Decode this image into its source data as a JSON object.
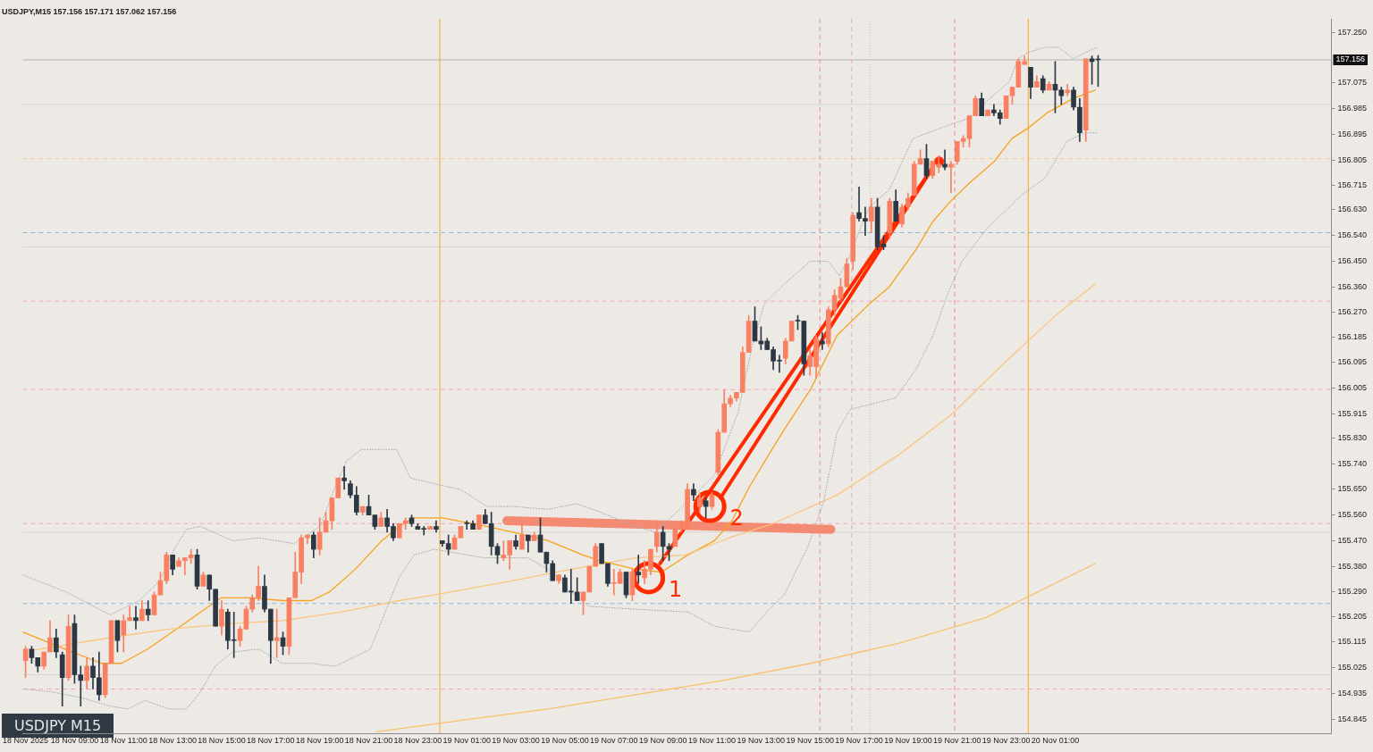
{
  "chart_data": {
    "type": "candlestick",
    "title": "USDJPY,M15 157.156 157.171 157.062 157.156",
    "xlim": [
      "2025-11-18T06:53",
      "2025-11-20T12:16"
    ],
    "ylim": [
      154.795,
      157.3
    ],
    "xticks": [
      {
        "value": "2025-11-18T07:00",
        "label": "18 Nov 2025"
      },
      {
        "value": "2025-11-18T09:00",
        "label": "18 Nov 09:00"
      },
      {
        "value": "2025-11-18T11:00",
        "label": "18 Nov 11:00"
      },
      {
        "value": "2025-11-18T13:00",
        "label": "18 Nov 13:00"
      },
      {
        "value": "2025-11-18T15:00",
        "label": "18 Nov 15:00"
      },
      {
        "value": "2025-11-18T17:00",
        "label": "18 Nov 17:00"
      },
      {
        "value": "2025-11-18T19:00",
        "label": "18 Nov 19:00"
      },
      {
        "value": "2025-11-18T21:00",
        "label": "18 Nov 21:00"
      },
      {
        "value": "2025-11-18T23:00",
        "label": "18 Nov 23:00"
      },
      {
        "value": "2025-11-19T01:00",
        "label": "19 Nov 01:00"
      },
      {
        "value": "2025-11-19T03:00",
        "label": "19 Nov 03:00"
      },
      {
        "value": "2025-11-19T05:00",
        "label": "19 Nov 05:00"
      },
      {
        "value": "2025-11-19T07:00",
        "label": "19 Nov 07:00"
      },
      {
        "value": "2025-11-19T09:00",
        "label": "19 Nov 09:00"
      },
      {
        "value": "2025-11-19T11:00",
        "label": "19 Nov 11:00"
      },
      {
        "value": "2025-11-19T13:00",
        "label": "19 Nov 13:00"
      },
      {
        "value": "2025-11-19T15:00",
        "label": "19 Nov 15:00"
      },
      {
        "value": "2025-11-19T17:00",
        "label": "19 Nov 17:00"
      },
      {
        "value": "2025-11-19T19:00",
        "label": "19 Nov 19:00"
      },
      {
        "value": "2025-11-19T21:00",
        "label": "19 Nov 21:00"
      },
      {
        "value": "2025-11-19T23:00",
        "label": "19 Nov 23:00"
      },
      {
        "value": "2025-11-20T01:00",
        "label": "20 Nov 01:00"
      }
    ],
    "yticks": [
      {
        "value": 157.25,
        "label": "157.250"
      },
      {
        "value": 157.075,
        "label": "157.075"
      },
      {
        "value": 156.985,
        "label": "156.985"
      },
      {
        "value": 156.895,
        "label": "156.895"
      },
      {
        "value": 156.805,
        "label": "156.805"
      },
      {
        "value": 156.715,
        "label": "156.715"
      },
      {
        "value": 156.63,
        "label": "156.630"
      },
      {
        "value": 156.54,
        "label": "156.540"
      },
      {
        "value": 156.45,
        "label": "156.450"
      },
      {
        "value": 156.36,
        "label": "156.360"
      },
      {
        "value": 156.27,
        "label": "156.270"
      },
      {
        "value": 156.185,
        "label": "156.185"
      },
      {
        "value": 156.095,
        "label": "156.095"
      },
      {
        "value": 156.005,
        "label": "156.005"
      },
      {
        "value": 155.915,
        "label": "155.915"
      },
      {
        "value": 155.83,
        "label": "155.830"
      },
      {
        "value": 155.74,
        "label": "155.740"
      },
      {
        "value": 155.65,
        "label": "155.650"
      },
      {
        "value": 155.56,
        "label": "155.560"
      },
      {
        "value": 155.47,
        "label": "155.470"
      },
      {
        "value": 155.38,
        "label": "155.380"
      },
      {
        "value": 155.29,
        "label": "155.290"
      },
      {
        "value": 155.205,
        "label": "155.205"
      },
      {
        "value": 155.115,
        "label": "155.115"
      },
      {
        "value": 155.025,
        "label": "155.025"
      },
      {
        "value": 154.935,
        "label": "154.935"
      },
      {
        "value": 154.845,
        "label": "154.845"
      }
    ],
    "x": [
      "2025-11-18T07:00",
      "2025-11-18T07:15",
      "2025-11-18T07:30",
      "2025-11-18T07:45",
      "2025-11-18T08:00",
      "2025-11-18T08:15",
      "2025-11-18T08:30",
      "2025-11-18T08:45",
      "2025-11-18T09:00",
      "2025-11-18T09:15",
      "2025-11-18T09:30",
      "2025-11-18T09:45",
      "2025-11-18T10:00",
      "2025-11-18T10:15",
      "2025-11-18T10:30",
      "2025-11-18T10:45",
      "2025-11-18T11:00",
      "2025-11-18T11:15",
      "2025-11-18T11:30",
      "2025-11-18T11:45",
      "2025-11-18T12:00",
      "2025-11-18T12:15",
      "2025-11-18T12:30",
      "2025-11-18T12:45",
      "2025-11-18T13:00",
      "2025-11-18T13:15",
      "2025-11-18T13:30",
      "2025-11-18T13:45",
      "2025-11-18T14:00",
      "2025-11-18T14:15",
      "2025-11-18T14:30",
      "2025-11-18T14:45",
      "2025-11-18T15:00",
      "2025-11-18T15:15",
      "2025-11-18T15:30",
      "2025-11-18T15:45",
      "2025-11-18T16:00",
      "2025-11-18T16:15",
      "2025-11-18T16:30",
      "2025-11-18T16:45",
      "2025-11-18T17:00",
      "2025-11-18T17:15",
      "2025-11-18T17:30",
      "2025-11-18T17:45",
      "2025-11-18T18:00",
      "2025-11-18T18:15",
      "2025-11-18T18:30",
      "2025-11-18T18:45",
      "2025-11-18T19:00",
      "2025-11-18T19:15",
      "2025-11-18T19:30",
      "2025-11-18T19:45",
      "2025-11-18T20:00",
      "2025-11-18T20:15",
      "2025-11-18T20:30",
      "2025-11-18T20:45",
      "2025-11-18T21:00",
      "2025-11-18T21:15",
      "2025-11-18T21:30",
      "2025-11-18T21:45",
      "2025-11-18T22:00",
      "2025-11-18T22:15",
      "2025-11-18T22:30",
      "2025-11-18T22:45",
      "2025-11-18T23:00",
      "2025-11-18T23:15",
      "2025-11-18T23:30",
      "2025-11-18T23:45",
      "2025-11-19T00:00",
      "2025-11-19T00:15",
      "2025-11-19T00:30",
      "2025-11-19T00:45",
      "2025-11-19T01:00",
      "2025-11-19T01:15",
      "2025-11-19T01:30",
      "2025-11-19T01:45",
      "2025-11-19T02:00",
      "2025-11-19T02:15",
      "2025-11-19T02:30",
      "2025-11-19T02:45",
      "2025-11-19T03:00",
      "2025-11-19T03:15",
      "2025-11-19T03:30",
      "2025-11-19T03:45",
      "2025-11-19T04:00",
      "2025-11-19T04:15",
      "2025-11-19T04:30",
      "2025-11-19T04:45",
      "2025-11-19T05:00",
      "2025-11-19T05:15",
      "2025-11-19T05:30",
      "2025-11-19T05:45",
      "2025-11-19T06:00",
      "2025-11-19T06:15",
      "2025-11-19T06:30",
      "2025-11-19T06:45",
      "2025-11-19T07:00",
      "2025-11-19T07:15",
      "2025-11-19T07:30",
      "2025-11-19T07:45",
      "2025-11-19T08:00",
      "2025-11-19T08:15",
      "2025-11-19T08:30",
      "2025-11-19T08:45",
      "2025-11-19T09:00",
      "2025-11-19T09:15",
      "2025-11-19T09:30",
      "2025-11-19T09:45",
      "2025-11-19T10:00",
      "2025-11-19T10:15",
      "2025-11-19T10:30",
      "2025-11-19T10:45",
      "2025-11-19T11:00",
      "2025-11-19T11:15",
      "2025-11-19T11:30",
      "2025-11-19T11:45",
      "2025-11-19T12:00",
      "2025-11-19T12:15",
      "2025-11-19T12:30",
      "2025-11-19T12:45",
      "2025-11-19T13:00",
      "2025-11-19T13:15",
      "2025-11-19T13:30",
      "2025-11-19T13:45",
      "2025-11-19T14:00",
      "2025-11-19T14:15",
      "2025-11-19T14:30",
      "2025-11-19T14:45",
      "2025-11-19T15:00",
      "2025-11-19T15:15",
      "2025-11-19T15:30",
      "2025-11-19T15:45",
      "2025-11-19T16:00",
      "2025-11-19T16:15",
      "2025-11-19T16:30",
      "2025-11-19T16:45",
      "2025-11-19T17:00",
      "2025-11-19T17:15",
      "2025-11-19T17:30",
      "2025-11-19T17:45",
      "2025-11-19T18:00",
      "2025-11-19T18:15",
      "2025-11-19T18:30",
      "2025-11-19T18:45",
      "2025-11-19T19:00",
      "2025-11-19T19:15",
      "2025-11-19T19:30",
      "2025-11-19T19:45",
      "2025-11-19T20:00",
      "2025-11-19T20:15",
      "2025-11-19T20:30",
      "2025-11-19T20:45",
      "2025-11-19T21:00",
      "2025-11-19T21:15",
      "2025-11-19T21:30",
      "2025-11-19T21:45",
      "2025-11-19T22:00",
      "2025-11-19T22:15",
      "2025-11-19T22:30",
      "2025-11-19T22:45",
      "2025-11-19T23:00",
      "2025-11-19T23:15",
      "2025-11-19T23:30",
      "2025-11-19T23:45",
      "2025-11-20T00:00",
      "2025-11-20T00:15",
      "2025-11-20T00:30",
      "2025-11-20T00:45",
      "2025-11-20T01:00",
      "2025-11-20T01:15",
      "2025-11-20T01:30",
      "2025-11-20T01:45",
      "2025-11-20T02:00",
      "2025-11-20T02:15",
      "2025-11-20T02:30",
      "2025-11-20T02:45"
    ],
    "ohlc": [
      [
        155.05,
        155.1,
        154.99,
        155.09
      ],
      [
        155.09,
        155.1,
        155.04,
        155.06
      ],
      [
        155.06,
        155.06,
        155.01,
        155.03
      ],
      [
        155.03,
        155.08,
        155.02,
        155.08
      ],
      [
        155.08,
        155.19,
        155.08,
        155.13
      ],
      [
        155.13,
        155.16,
        155.06,
        155.08
      ],
      [
        155.07,
        155.08,
        154.89,
        154.99
      ],
      [
        154.99,
        155.21,
        154.98,
        155.17
      ],
      [
        155.18,
        155.21,
        154.97,
        155.0
      ],
      [
        155.0,
        155.03,
        154.89,
        154.98
      ],
      [
        154.98,
        155.06,
        154.95,
        155.03
      ],
      [
        155.03,
        155.06,
        154.95,
        154.99
      ],
      [
        154.99,
        155.08,
        154.91,
        154.93
      ],
      [
        154.93,
        155.04,
        154.92,
        155.04
      ],
      [
        155.04,
        155.19,
        155.04,
        155.19
      ],
      [
        155.19,
        155.19,
        155.08,
        155.12
      ],
      [
        155.14,
        155.21,
        155.08,
        155.19
      ],
      [
        155.19,
        155.24,
        155.19,
        155.2
      ],
      [
        155.2,
        155.24,
        155.16,
        155.19
      ],
      [
        155.19,
        155.26,
        155.19,
        155.23
      ],
      [
        155.23,
        155.26,
        155.19,
        155.21
      ],
      [
        155.21,
        155.29,
        155.21,
        155.28
      ],
      [
        155.28,
        155.36,
        155.28,
        155.33
      ],
      [
        155.33,
        155.43,
        155.32,
        155.42
      ],
      [
        155.42,
        155.42,
        155.35,
        155.37
      ],
      [
        155.38,
        155.41,
        155.38,
        155.4
      ],
      [
        155.4,
        155.41,
        155.35,
        155.41
      ],
      [
        155.41,
        155.44,
        155.39,
        155.42
      ],
      [
        155.42,
        155.44,
        155.3,
        155.31
      ],
      [
        155.31,
        155.36,
        155.31,
        155.35
      ],
      [
        155.35,
        155.35,
        155.26,
        155.3
      ],
      [
        155.3,
        155.3,
        155.17,
        155.17
      ],
      [
        155.17,
        155.26,
        155.14,
        155.23
      ],
      [
        155.22,
        155.23,
        155.09,
        155.12
      ],
      [
        155.12,
        155.22,
        155.06,
        155.12
      ],
      [
        155.12,
        155.17,
        155.1,
        155.16
      ],
      [
        155.16,
        155.24,
        155.16,
        155.23
      ],
      [
        155.23,
        155.28,
        155.22,
        155.27
      ],
      [
        155.27,
        155.38,
        155.26,
        155.31
      ],
      [
        155.31,
        155.35,
        155.22,
        155.23
      ],
      [
        155.23,
        155.23,
        155.04,
        155.12
      ],
      [
        155.12,
        155.23,
        155.06,
        155.13
      ],
      [
        155.13,
        155.15,
        155.07,
        155.1
      ],
      [
        155.1,
        155.27,
        155.07,
        155.27
      ],
      [
        155.27,
        155.43,
        155.27,
        155.36
      ],
      [
        155.36,
        155.49,
        155.32,
        155.48
      ],
      [
        155.48,
        155.49,
        155.46,
        155.49
      ],
      [
        155.49,
        155.5,
        155.41,
        155.44
      ],
      [
        155.44,
        155.55,
        155.42,
        155.5
      ],
      [
        155.5,
        155.57,
        155.5,
        155.54
      ],
      [
        155.54,
        155.62,
        155.51,
        155.62
      ],
      [
        155.62,
        155.69,
        155.62,
        155.69
      ],
      [
        155.69,
        155.73,
        155.65,
        155.68
      ],
      [
        155.67,
        155.68,
        155.62,
        155.63
      ],
      [
        155.63,
        155.66,
        155.56,
        155.57
      ],
      [
        155.57,
        155.59,
        155.56,
        155.59
      ],
      [
        155.59,
        155.63,
        155.56,
        155.56
      ],
      [
        155.56,
        155.56,
        155.51,
        155.52
      ],
      [
        155.52,
        155.57,
        155.52,
        155.55
      ],
      [
        155.55,
        155.58,
        155.5,
        155.52
      ],
      [
        155.52,
        155.53,
        155.47,
        155.48
      ],
      [
        155.48,
        155.53,
        155.48,
        155.53
      ],
      [
        155.53,
        155.55,
        155.51,
        155.54
      ],
      [
        155.55,
        155.56,
        155.52,
        155.53
      ],
      [
        155.52,
        155.53,
        155.51,
        155.51
      ],
      [
        155.51,
        155.52,
        155.49,
        155.51
      ],
      [
        155.51,
        155.52,
        155.51,
        155.52
      ],
      [
        155.52,
        155.54,
        155.5,
        155.51
      ],
      [
        155.47,
        155.47,
        155.45,
        155.46
      ],
      [
        155.46,
        155.49,
        155.42,
        155.44
      ],
      [
        155.44,
        155.49,
        155.44,
        155.48
      ],
      [
        155.48,
        155.52,
        155.48,
        155.52
      ],
      [
        155.53,
        155.54,
        155.51,
        155.53
      ],
      [
        155.53,
        155.54,
        155.51,
        155.51
      ],
      [
        155.51,
        155.56,
        155.51,
        155.56
      ],
      [
        155.56,
        155.58,
        155.53,
        155.53
      ],
      [
        155.53,
        155.57,
        155.42,
        155.45
      ],
      [
        155.45,
        155.46,
        155.39,
        155.42
      ],
      [
        155.41,
        155.47,
        155.4,
        155.42
      ],
      [
        155.42,
        155.47,
        155.37,
        155.47
      ],
      [
        155.47,
        155.49,
        155.44,
        155.45
      ],
      [
        155.44,
        155.53,
        155.44,
        155.49
      ],
      [
        155.49,
        155.49,
        155.43,
        155.47
      ],
      [
        155.47,
        155.5,
        155.47,
        155.49
      ],
      [
        155.49,
        155.55,
        155.43,
        155.43
      ],
      [
        155.43,
        155.43,
        155.36,
        155.39
      ],
      [
        155.39,
        155.4,
        155.33,
        155.33
      ],
      [
        155.33,
        155.35,
        155.32,
        155.35
      ],
      [
        155.34,
        155.35,
        155.29,
        155.29
      ],
      [
        155.29,
        155.37,
        155.25,
        155.29
      ],
      [
        155.29,
        155.34,
        155.26,
        155.26
      ],
      [
        155.26,
        155.29,
        155.21,
        155.29
      ],
      [
        155.29,
        155.38,
        155.29,
        155.38
      ],
      [
        155.38,
        155.46,
        155.38,
        155.45
      ],
      [
        155.46,
        155.46,
        155.39,
        155.39
      ],
      [
        155.39,
        155.39,
        155.31,
        155.32
      ],
      [
        155.32,
        155.37,
        155.28,
        155.32
      ],
      [
        155.32,
        155.37,
        155.32,
        155.36
      ],
      [
        155.36,
        155.36,
        155.27,
        155.28
      ],
      [
        155.28,
        155.37,
        155.26,
        155.36
      ],
      [
        155.36,
        155.42,
        155.32,
        155.35
      ],
      [
        155.34,
        155.4,
        155.32,
        155.37
      ],
      [
        155.37,
        155.44,
        155.35,
        155.44
      ],
      [
        155.45,
        155.53,
        155.43,
        155.5
      ],
      [
        155.5,
        155.52,
        155.4,
        155.45
      ],
      [
        155.45,
        155.46,
        155.4,
        155.44
      ],
      [
        155.45,
        155.52,
        155.45,
        155.51
      ],
      [
        155.51,
        155.54,
        155.5,
        155.53
      ],
      [
        155.51,
        155.67,
        155.51,
        155.65
      ],
      [
        155.65,
        155.67,
        155.61,
        155.63
      ],
      [
        155.59,
        155.64,
        155.57,
        155.62
      ],
      [
        155.61,
        155.62,
        155.55,
        155.59
      ],
      [
        155.59,
        155.64,
        155.58,
        155.63
      ],
      [
        155.71,
        155.86,
        155.7,
        155.85
      ],
      [
        155.85,
        156.0,
        155.85,
        155.95
      ],
      [
        155.95,
        155.98,
        155.94,
        155.97
      ],
      [
        155.97,
        155.99,
        155.96,
        155.99
      ],
      [
        155.99,
        156.15,
        155.99,
        156.13
      ],
      [
        156.13,
        156.26,
        156.13,
        156.24
      ],
      [
        156.24,
        156.29,
        156.17,
        156.17
      ],
      [
        156.17,
        156.22,
        156.14,
        156.16
      ],
      [
        156.17,
        156.18,
        156.14,
        156.14
      ],
      [
        156.14,
        156.15,
        156.07,
        156.1
      ],
      [
        156.1,
        156.12,
        156.06,
        156.1
      ],
      [
        156.11,
        156.18,
        156.09,
        156.17
      ],
      [
        156.17,
        156.24,
        156.17,
        156.24
      ],
      [
        156.24,
        156.26,
        156.21,
        156.24
      ],
      [
        156.24,
        156.24,
        156.05,
        156.09
      ],
      [
        156.08,
        156.14,
        156.05,
        156.12
      ],
      [
        156.08,
        156.19,
        156.04,
        156.18
      ],
      [
        156.17,
        156.2,
        156.14,
        156.16
      ],
      [
        156.16,
        156.29,
        156.15,
        156.28
      ],
      [
        156.28,
        156.35,
        156.26,
        156.33
      ],
      [
        156.32,
        156.39,
        156.31,
        156.36
      ],
      [
        156.36,
        156.46,
        156.36,
        156.44
      ],
      [
        156.45,
        156.62,
        156.42,
        156.61
      ],
      [
        156.62,
        156.71,
        156.59,
        156.6
      ],
      [
        156.6,
        156.64,
        156.54,
        156.59
      ],
      [
        156.59,
        156.67,
        156.55,
        156.64
      ],
      [
        156.64,
        156.67,
        156.49,
        156.5
      ],
      [
        156.51,
        156.54,
        156.49,
        156.5
      ],
      [
        156.55,
        156.67,
        156.53,
        156.66
      ],
      [
        156.66,
        156.7,
        156.59,
        156.59
      ],
      [
        156.58,
        156.65,
        156.57,
        156.64
      ],
      [
        156.64,
        156.69,
        156.63,
        156.67
      ],
      [
        156.68,
        156.8,
        156.68,
        156.79
      ],
      [
        156.79,
        156.84,
        156.79,
        156.81
      ],
      [
        156.81,
        156.86,
        156.74,
        156.75
      ],
      [
        156.75,
        156.8,
        156.74,
        156.8
      ],
      [
        156.78,
        156.82,
        156.76,
        156.79
      ],
      [
        156.79,
        156.84,
        156.77,
        156.78
      ],
      [
        156.78,
        156.8,
        156.69,
        156.79
      ],
      [
        156.8,
        156.87,
        156.79,
        156.87
      ],
      [
        156.87,
        156.89,
        156.85,
        156.88
      ],
      [
        156.88,
        156.96,
        156.85,
        156.96
      ],
      [
        156.96,
        157.03,
        156.96,
        157.02
      ],
      [
        157.02,
        157.04,
        156.96,
        156.96
      ],
      [
        156.96,
        156.98,
        156.96,
        156.98
      ],
      [
        156.98,
        157.0,
        156.96,
        156.97
      ],
      [
        156.97,
        156.98,
        156.93,
        156.95
      ],
      [
        156.95,
        157.03,
        156.95,
        157.03
      ],
      [
        157.03,
        157.06,
        157.0,
        157.06
      ],
      [
        157.06,
        157.16,
        157.06,
        157.15
      ],
      [
        157.14,
        157.17,
        157.14,
        157.15
      ],
      [
        157.13,
        157.13,
        157.02,
        157.06
      ],
      [
        157.06,
        157.1,
        157.06,
        157.08
      ],
      [
        157.09,
        157.1,
        157.04,
        157.05
      ],
      [
        157.05,
        157.08,
        157.05,
        157.07
      ],
      [
        157.07,
        157.15,
        156.97,
        157.05
      ],
      [
        157.05,
        157.06,
        157.0,
        157.03
      ],
      [
        157.04,
        157.07,
        157.03,
        157.05
      ],
      [
        157.05,
        157.06,
        156.98,
        156.99
      ],
      [
        156.99,
        157.02,
        156.87,
        156.9
      ],
      [
        156.91,
        157.16,
        156.87,
        157.16
      ],
      [
        157.16,
        157.17,
        157.07,
        157.15
      ],
      [
        157.156,
        157.171,
        157.062,
        157.156
      ]
    ],
    "colors": [
      "#f98060",
      "#2c3844",
      "#2c3844",
      "#f98060",
      "#f98060",
      "#2c3844",
      "#2c3844",
      "#f98060",
      "#2c3844",
      "#2c3844",
      "#f98060",
      "#2c3844",
      "#2c3844",
      "#f98060",
      "#f98060",
      "#2c3844",
      "#f98060",
      "#f98060",
      "#2c3844",
      "#f98060",
      "#2c3844",
      "#f98060",
      "#f98060",
      "#f98060",
      "#2c3844",
      "#f98060",
      "#f98060",
      "#f98060",
      "#2c3844",
      "#f98060",
      "#2c3844",
      "#2c3844",
      "#f98060",
      "#2c3844",
      "#2c3844",
      "#f98060",
      "#f98060",
      "#f98060",
      "#f98060",
      "#2c3844",
      "#2c3844",
      "#f98060",
      "#2c3844",
      "#f98060",
      "#f98060",
      "#f98060",
      "#f98060",
      "#2c3844",
      "#f98060",
      "#f98060",
      "#f98060",
      "#f98060",
      "#2c3844",
      "#2c3844",
      "#2c3844",
      "#f98060",
      "#2c3844",
      "#2c3844",
      "#f98060",
      "#2c3844",
      "#2c3844",
      "#f98060",
      "#f98060",
      "#2c3844",
      "#2c3844",
      "#2c3844",
      "#f98060",
      "#2c3844",
      "#2c3844",
      "#2c3844",
      "#f98060",
      "#f98060",
      "#2c3844",
      "#2c3844",
      "#f98060",
      "#2c3844",
      "#2c3844",
      "#2c3844",
      "#f98060",
      "#f98060",
      "#2c3844",
      "#f98060",
      "#2c3844",
      "#f98060",
      "#2c3844",
      "#2c3844",
      "#2c3844",
      "#f98060",
      "#2c3844",
      "#2c3844",
      "#2c3844",
      "#f98060",
      "#f98060",
      "#f98060",
      "#2c3844",
      "#2c3844",
      "#f98060",
      "#f98060",
      "#2c3844",
      "#f98060",
      "#2c3844",
      "#f98060",
      "#f98060",
      "#f98060",
      "#2c3844",
      "#2c3844",
      "#f98060",
      "#f98060",
      "#f98060",
      "#2c3844",
      "#f98060",
      "#2c3844",
      "#f98060",
      "#f98060",
      "#f98060",
      "#f98060",
      "#f98060",
      "#f98060",
      "#f98060",
      "#2c3844",
      "#2c3844",
      "#2c3844",
      "#2c3844",
      "#2c3844",
      "#f98060",
      "#f98060",
      "#2c3844",
      "#2c3844",
      "#f98060",
      "#f98060",
      "#2c3844",
      "#f98060",
      "#f98060",
      "#f98060",
      "#f98060",
      "#f98060",
      "#2c3844",
      "#2c3844",
      "#f98060",
      "#2c3844",
      "#2c3844",
      "#f98060",
      "#2c3844",
      "#f98060",
      "#f98060",
      "#f98060",
      "#f98060",
      "#2c3844",
      "#f98060",
      "#f98060",
      "#2c3844",
      "#f98060",
      "#f98060",
      "#f98060",
      "#f98060",
      "#f98060",
      "#2c3844",
      "#f98060",
      "#2c3844",
      "#2c3844",
      "#f98060",
      "#f98060",
      "#f98060",
      "#f98060",
      "#2c3844",
      "#f98060",
      "#2c3844",
      "#f98060",
      "#2c3844",
      "#2c3844",
      "#f98060",
      "#2c3844",
      "#2c3844",
      "#f98060",
      "#2c3844",
      "#2c3844"
    ],
    "series": [
      {
        "type": "line",
        "color": "#a9a8b2",
        "line_style": "dotted",
        "x": [
          "2025-11-18T06:53",
          "2025-11-18T08:40",
          "2025-11-18T10:27",
          "2025-11-18T11:38",
          "2025-11-18T12:29",
          "2025-11-18T13:04",
          "2025-11-18T13:34",
          "2025-11-18T14:08",
          "2025-11-18T15:27",
          "2025-11-18T16:31",
          "2025-11-18T17:57",
          "2025-11-18T19:01",
          "2025-11-18T19:38",
          "2025-11-18T20:06",
          "2025-11-18T20:42",
          "2025-11-18T22:08",
          "2025-11-18T22:42",
          "2025-11-18T23:40",
          "2025-11-19T00:44",
          "2025-11-19T01:49",
          "2025-11-19T02:53",
          "2025-11-19T04:19",
          "2025-11-19T05:29",
          "2025-11-19T06:27",
          "2025-11-19T07:53",
          "2025-11-19T08:42",
          "2025-11-19T09:55",
          "2025-11-19T11:06",
          "2025-11-19T12:04",
          "2025-11-19T12:38",
          "2025-11-19T13:08",
          "2025-11-19T13:57",
          "2025-11-19T15:01",
          "2025-11-19T15:44",
          "2025-11-19T16:12",
          "2025-11-19T16:34",
          "2025-11-19T17:25",
          "2025-11-19T18:14",
          "2025-11-19T19:12",
          "2025-11-19T20:44",
          "2025-11-19T21:27",
          "2025-11-19T22:04",
          "2025-11-19T23:08",
          "2025-11-19T23:29",
          "2025-11-19T23:51",
          "2025-11-20T00:34",
          "2025-11-20T01:08",
          "2025-11-20T01:44",
          "2025-11-20T02:12",
          "2025-11-20T02:42"
        ],
        "values": [
          155.35,
          155.29,
          155.21,
          155.26,
          155.33,
          155.44,
          155.51,
          155.52,
          155.47,
          155.48,
          155.46,
          155.52,
          155.66,
          155.75,
          155.79,
          155.79,
          155.69,
          155.67,
          155.65,
          155.59,
          155.59,
          155.58,
          155.6,
          155.57,
          155.52,
          155.5,
          155.6,
          155.7,
          155.92,
          156.15,
          156.3,
          156.37,
          156.45,
          156.45,
          156.4,
          156.46,
          156.64,
          156.7,
          156.88,
          156.93,
          156.95,
          157.0,
          157.08,
          157.16,
          157.18,
          157.2,
          157.2,
          157.16,
          157.18,
          157.2
        ]
      },
      {
        "type": "line",
        "color": "#a9a8b2",
        "line_style": "dotted",
        "x": [
          "2025-11-18T06:53",
          "2025-11-18T08:04",
          "2025-11-18T09:16",
          "2025-11-18T10:27",
          "2025-11-18T11:10",
          "2025-11-18T11:53",
          "2025-11-18T12:51",
          "2025-11-18T13:34",
          "2025-11-18T14:08",
          "2025-11-18T14:44",
          "2025-11-18T15:27",
          "2025-11-18T16:31",
          "2025-11-18T17:29",
          "2025-11-18T18:40",
          "2025-11-18T19:38",
          "2025-11-18T21:04",
          "2025-11-18T22:14",
          "2025-11-18T22:51",
          "2025-11-18T23:40",
          "2025-11-19T01:42",
          "2025-11-19T03:29",
          "2025-11-19T04:19",
          "2025-11-19T05:16",
          "2025-11-19T05:59",
          "2025-11-19T07:53",
          "2025-11-19T10:01",
          "2025-11-19T11:06",
          "2025-11-19T12:32",
          "2025-11-19T13:14",
          "2025-11-19T13:57",
          "2025-11-19T14:55",
          "2025-11-19T15:34",
          "2025-11-19T16:06",
          "2025-11-19T16:38",
          "2025-11-19T17:32",
          "2025-11-19T18:29",
          "2025-11-19T19:19",
          "2025-11-19T20:01",
          "2025-11-19T20:38",
          "2025-11-19T21:12",
          "2025-11-19T22:10",
          "2025-11-19T23:36",
          "2025-11-20T00:34",
          "2025-11-20T01:29",
          "2025-11-20T02:12",
          "2025-11-20T02:42"
        ],
        "values": [
          154.95,
          154.94,
          154.92,
          154.89,
          154.88,
          154.91,
          154.88,
          154.88,
          154.94,
          155.03,
          155.08,
          155.09,
          155.04,
          155.04,
          155.03,
          155.09,
          155.34,
          155.42,
          155.44,
          155.41,
          155.41,
          155.37,
          155.29,
          155.24,
          155.23,
          155.22,
          155.17,
          155.15,
          155.22,
          155.28,
          155.45,
          155.61,
          155.85,
          155.93,
          155.95,
          155.97,
          156.07,
          156.19,
          156.34,
          156.45,
          156.56,
          156.68,
          156.74,
          156.87,
          156.9,
          156.9
        ]
      },
      {
        "type": "line",
        "color": "#f9c67e",
        "line_style": "solid",
        "x": [
          "2025-11-18T06:53",
          "2025-11-18T10:27",
          "2025-11-18T12:51",
          "2025-11-18T15:27",
          "2025-11-18T17:29",
          "2025-11-18T19:51",
          "2025-11-18T22:14",
          "2025-11-18T23:40",
          "2025-11-19T02:53",
          "2025-11-19T05:16",
          "2025-11-19T07:53",
          "2025-11-19T09:55",
          "2025-11-19T11:42",
          "2025-11-19T13:29",
          "2025-11-19T16:06",
          "2025-11-19T18:36",
          "2025-11-19T20:44",
          "2025-11-19T22:53",
          "2025-11-20T01:01",
          "2025-11-20T02:38"
        ],
        "values": [
          155.08,
          155.13,
          155.16,
          155.18,
          155.19,
          155.22,
          155.26,
          155.28,
          155.33,
          155.37,
          155.41,
          155.42,
          155.48,
          155.53,
          155.63,
          155.77,
          155.91,
          156.09,
          156.26,
          156.37
        ]
      },
      {
        "type": "line",
        "color": "#f9c06a",
        "line_style": "solid",
        "x": [
          "2025-11-18T21:19",
          "2025-11-19T00:44",
          "2025-11-19T04:19",
          "2025-11-19T07:53",
          "2025-11-19T11:27",
          "2025-11-19T15:01",
          "2025-11-19T18:36",
          "2025-11-19T22:10",
          "2025-11-20T02:38"
        ],
        "values": [
          154.8,
          154.84,
          154.88,
          154.93,
          154.98,
          155.04,
          155.11,
          155.2,
          155.39
        ]
      },
      {
        "type": "line",
        "color": "#f7a21b",
        "line_style": "solid",
        "x": [
          "2025-11-18T06:53",
          "2025-11-18T08:19",
          "2025-11-18T10:06",
          "2025-11-18T10:55",
          "2025-11-18T11:59",
          "2025-11-18T13:19",
          "2025-11-18T14:59",
          "2025-11-18T16:10",
          "2025-11-18T17:29",
          "2025-11-18T18:40",
          "2025-11-18T19:23",
          "2025-11-18T20:27",
          "2025-11-18T21:32",
          "2025-11-18T22:14",
          "2025-11-18T22:51",
          "2025-11-18T23:40",
          "2025-11-19T00:01",
          "2025-11-19T01:49",
          "2025-11-19T02:53",
          "2025-11-19T04:19",
          "2025-11-19T05:44",
          "2025-11-19T06:27",
          "2025-11-19T07:53",
          "2025-11-19T08:57",
          "2025-11-19T10:01",
          "2025-11-19T11:06",
          "2025-11-19T11:49",
          "2025-11-19T12:32",
          "2025-11-19T13:14",
          "2025-11-19T13:57",
          "2025-11-19T15:01",
          "2025-11-19T16:06",
          "2025-11-19T17:25",
          "2025-11-19T18:14",
          "2025-11-19T19:19",
          "2025-11-19T20:01",
          "2025-11-19T20:44",
          "2025-11-19T21:27",
          "2025-11-19T22:31",
          "2025-11-19T23:14",
          "2025-11-19T23:57",
          "2025-11-20T00:40",
          "2025-11-20T01:44",
          "2025-11-20T02:38"
        ],
        "values": [
          155.15,
          155.1,
          155.04,
          155.04,
          155.09,
          155.17,
          155.27,
          155.27,
          155.26,
          155.26,
          155.29,
          155.37,
          155.47,
          155.52,
          155.55,
          155.55,
          155.55,
          155.52,
          155.5,
          155.47,
          155.42,
          155.4,
          155.37,
          155.36,
          155.42,
          155.47,
          155.54,
          155.66,
          155.76,
          155.86,
          156.0,
          156.19,
          156.3,
          156.36,
          156.49,
          156.59,
          156.66,
          156.72,
          156.8,
          156.88,
          156.92,
          156.97,
          157.02,
          157.05
        ]
      },
      {
        "type": "line",
        "color": "#f58a73",
        "line_style": "solid",
        "x": [
          "2025-11-19T02:38",
          "2025-11-19T15:51"
        ],
        "values": [
          155.54,
          155.51
        ]
      },
      {
        "type": "line",
        "color": "#ff2a00",
        "line_style": "solid",
        "x": [
          "2025-11-19T08:53",
          "2025-11-19T20:01"
        ],
        "values": [
          155.39,
          156.78
        ]
      },
      {
        "type": "line",
        "color": "#ff2a00",
        "line_style": "solid",
        "x": [
          "2025-11-19T11:21",
          "2025-11-19T20:01"
        ],
        "values": [
          155.62,
          156.78
        ]
      },
      {
        "type": "bubble",
        "color": "#ff2a00",
        "x": [
          "2025-11-19T08:25",
          "2025-11-19T10:55"
        ],
        "values": [
          155.34,
          155.59
        ],
        "sizes": [
          1,
          1
        ]
      },
      {
        "type": "scatter",
        "color": "#ff2a00",
        "marker": "circle",
        "x": [
          "2025-11-19T20:16"
        ],
        "values": [
          156.8
        ]
      }
    ],
    "ref_lines": [
      {
        "axis": "y",
        "value": 157.156,
        "label": "157.156",
        "color": "#b4b1ac",
        "line_style": "solid"
      },
      {
        "axis": "y",
        "value": 157.0,
        "color": "#d8d5d1",
        "line_style": "solid"
      },
      {
        "axis": "y",
        "value": 156.5,
        "color": "#d8d5d1",
        "line_style": "solid"
      },
      {
        "axis": "y",
        "value": 155.5,
        "color": "#d8d5d1",
        "line_style": "solid"
      },
      {
        "axis": "y",
        "value": 155.0,
        "color": "#d8d5d1",
        "line_style": "solid"
      },
      {
        "axis": "y",
        "value": 156.81,
        "color": "#f5cf95",
        "line_style": "dashed"
      },
      {
        "axis": "y",
        "value": 156.55,
        "color": "#8fb5dd",
        "line_style": "dashed"
      },
      {
        "axis": "y",
        "value": 155.25,
        "color": "#8fb5dd",
        "line_style": "dashed"
      },
      {
        "axis": "y",
        "value": 156.31,
        "color": "#f2a6bb",
        "line_style": "dashed"
      },
      {
        "axis": "y",
        "value": 156.0,
        "color": "#f2a6bb",
        "line_style": "dashed"
      },
      {
        "axis": "y",
        "value": 155.53,
        "color": "#f2a6bb",
        "line_style": "dashed"
      },
      {
        "axis": "y",
        "value": 154.95,
        "color": "#f2a6bb",
        "line_style": "dashed"
      },
      {
        "axis": "x",
        "value": "2025-11-18T23:54",
        "color": "#f5a623",
        "line_style": "solid"
      },
      {
        "axis": "x",
        "value": "2025-11-19T23:54",
        "color": "#f5a623",
        "line_style": "solid"
      },
      {
        "axis": "x",
        "value": "2025-11-19T15:24",
        "color": "#ec8c8c",
        "line_style": "dashed"
      },
      {
        "axis": "x",
        "value": "2025-11-19T16:42",
        "color": "#f0a5b5",
        "line_style": "dashed"
      },
      {
        "axis": "x",
        "value": "2025-11-19T17:27",
        "color": "#c9c6c2",
        "line_style": "dotted"
      },
      {
        "axis": "x",
        "value": "2025-11-19T20:54",
        "color": "#ec8c8c",
        "line_style": "dashed"
      }
    ],
    "annotations": [
      "USDJPY M15",
      {
        "text": "1",
        "x": "2025-11-19T08:25",
        "y": 155.34
      },
      {
        "text": "2",
        "x": "2025-11-19T10:55",
        "y": 155.59
      }
    ]
  }
}
